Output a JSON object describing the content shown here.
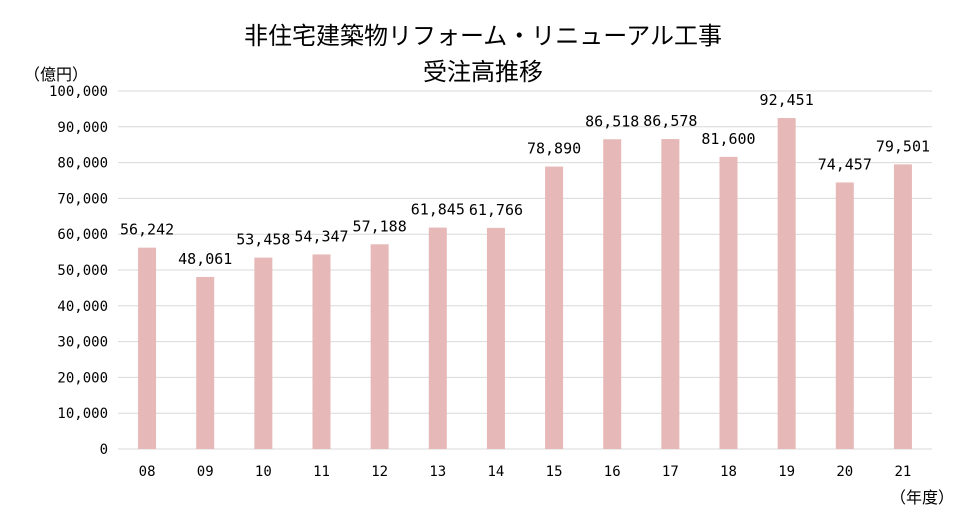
{
  "chart_data": {
    "type": "bar",
    "title_line1": "非住宅建築物リフォーム・リニューアル工事",
    "title_line2": "受注高推移",
    "ylabel": "（億円）",
    "xlabel": "（年度）",
    "categories": [
      "08",
      "09",
      "10",
      "11",
      "12",
      "13",
      "14",
      "15",
      "16",
      "17",
      "18",
      "19",
      "20",
      "21"
    ],
    "values": [
      56242,
      48061,
      53458,
      54347,
      57188,
      61845,
      61766,
      78890,
      86518,
      86578,
      81600,
      92451,
      74457,
      79501
    ],
    "data_labels": [
      "56,242",
      "48,061",
      "53,458",
      "54,347",
      "57,188",
      "61,845",
      "61,766",
      "78,890",
      "86,518",
      "86,578",
      "81,600",
      "92,451",
      "74,457",
      "79,501"
    ],
    "ylim": [
      0,
      100000
    ],
    "yticks": [
      0,
      10000,
      20000,
      30000,
      40000,
      50000,
      60000,
      70000,
      80000,
      90000,
      100000
    ],
    "ytick_labels": [
      "0",
      "10,000",
      "20,000",
      "30,000",
      "40,000",
      "50,000",
      "60,000",
      "70,000",
      "80,000",
      "90,000",
      "100,000"
    ],
    "grid": true,
    "bar_color": "#e6b8b7",
    "grid_color": "#d9d9d9"
  }
}
